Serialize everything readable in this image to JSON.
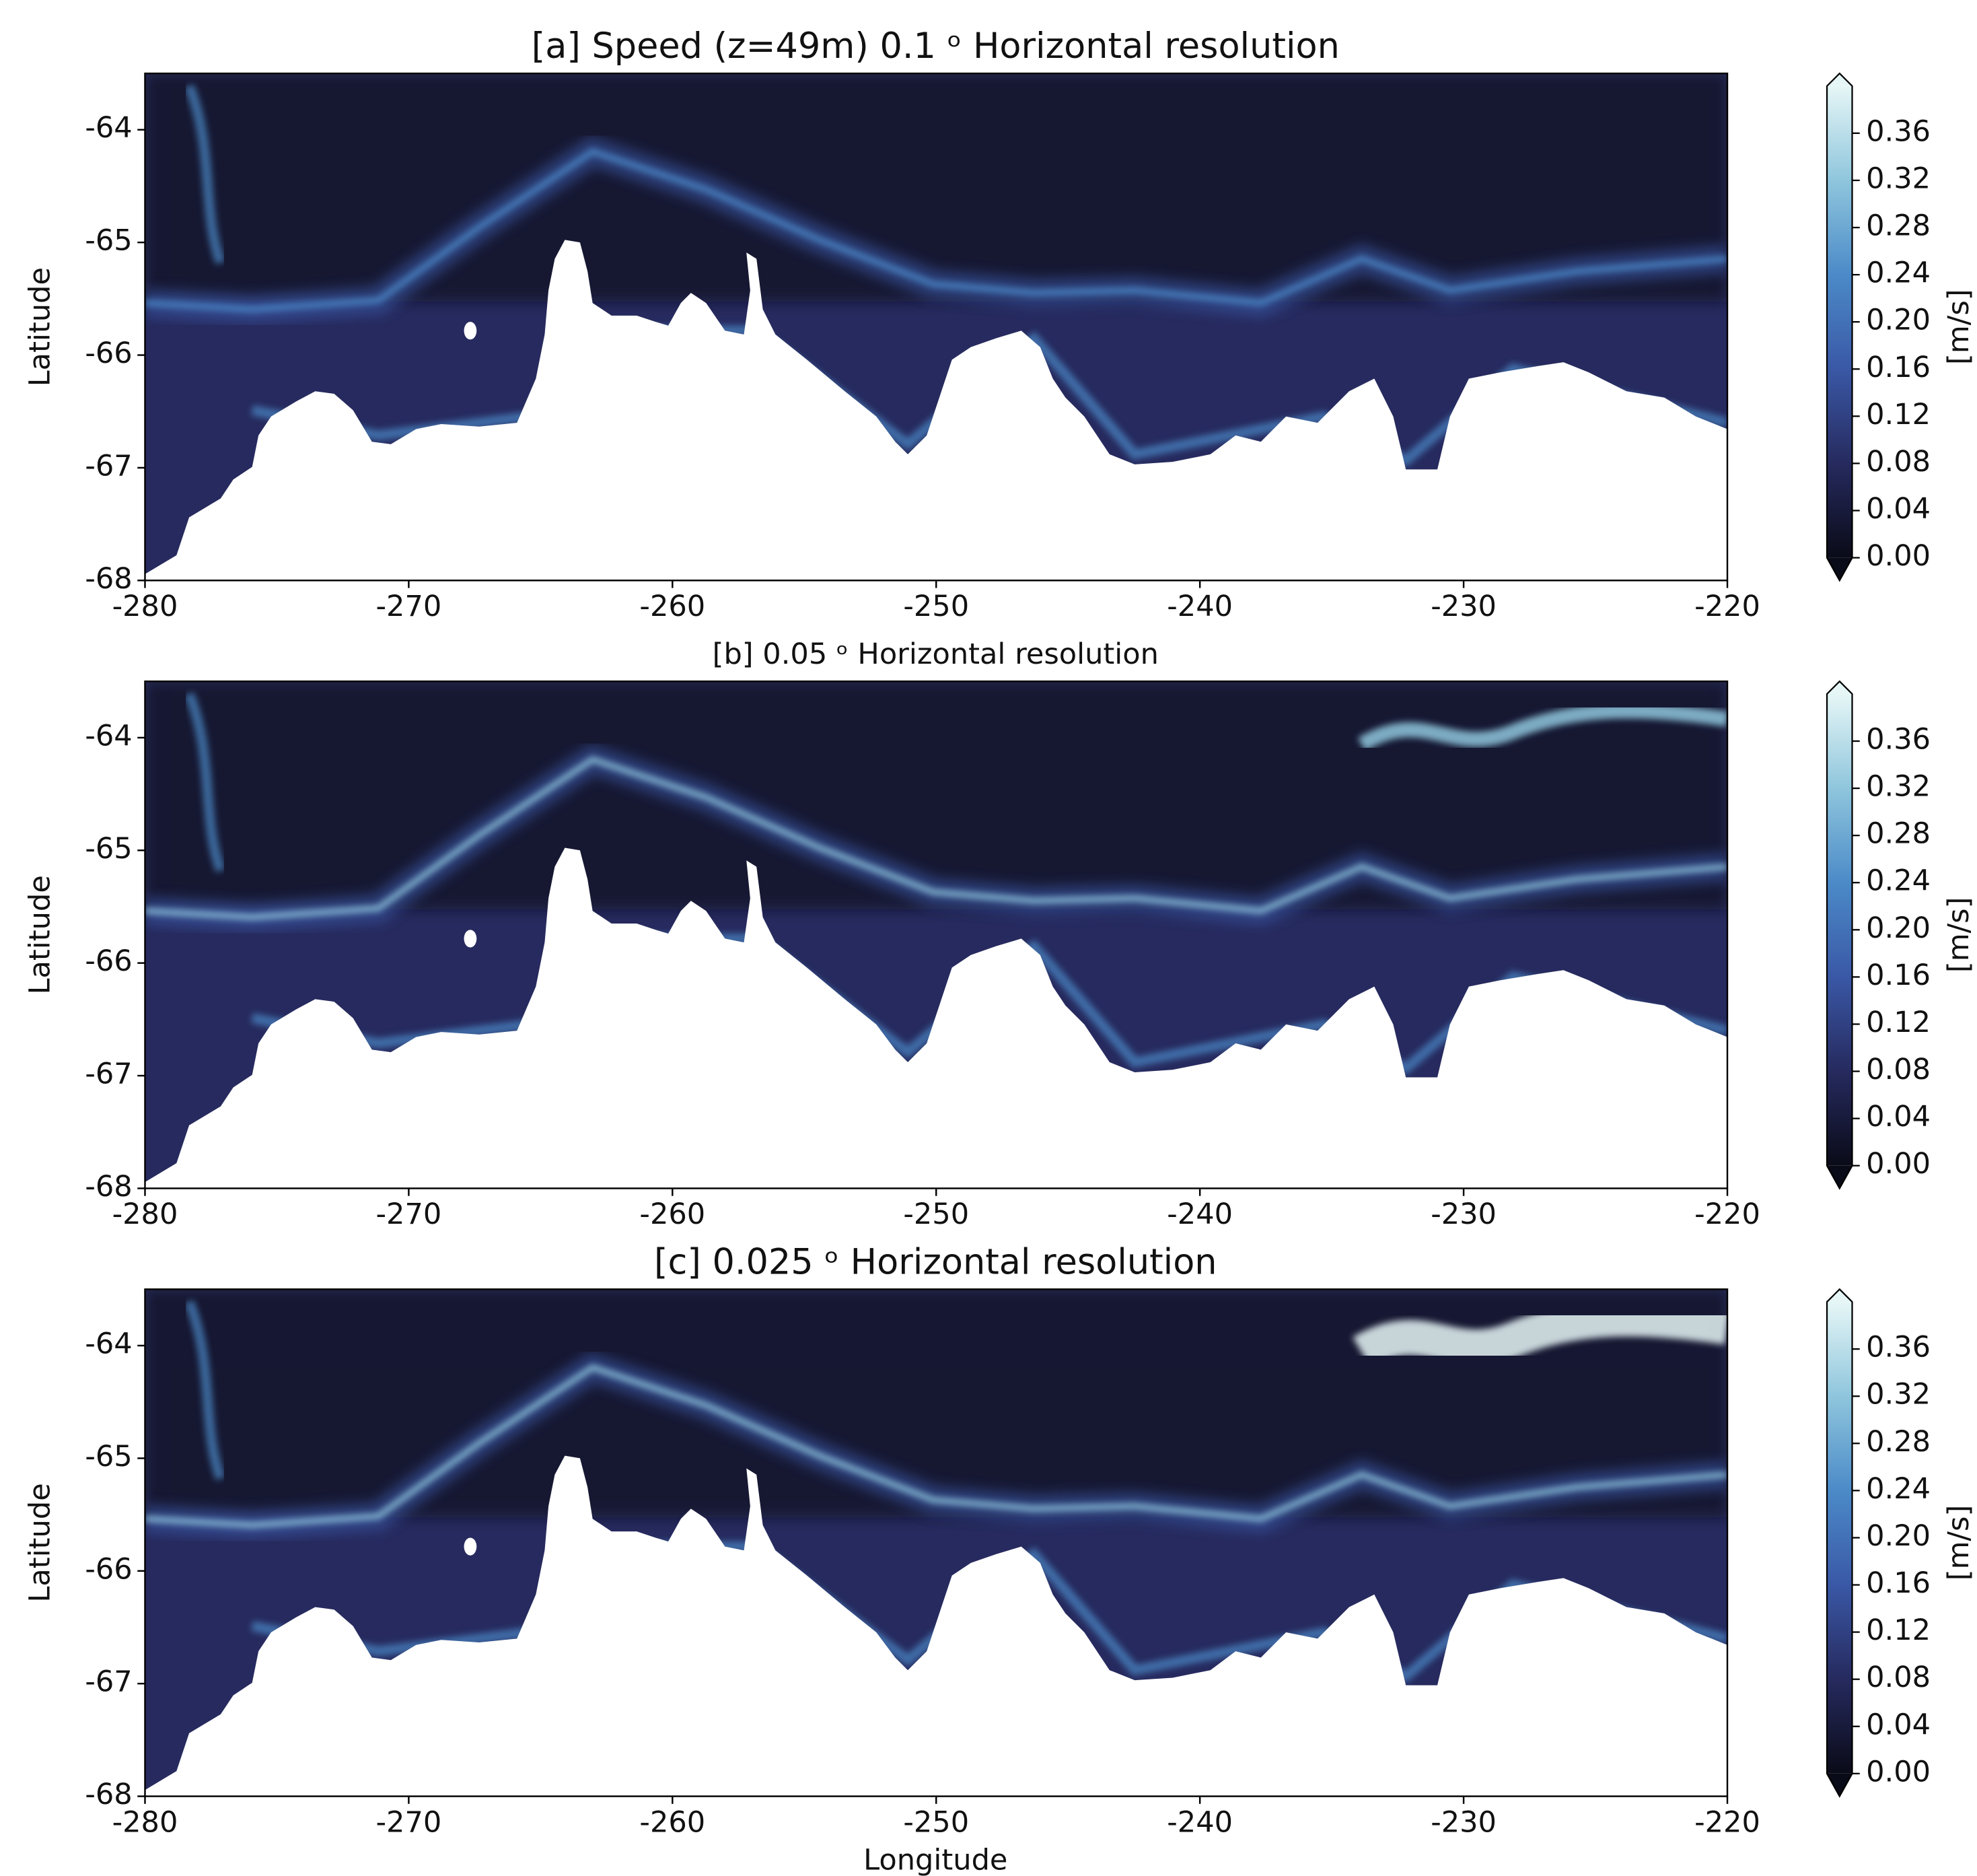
{
  "chart_data": [
    {
      "type": "heatmap",
      "title": "[a] Speed (z=49m) 0.1 ᵒ Horizontal resolution",
      "ylabel": "Latitude",
      "xlim": [
        -280,
        -220
      ],
      "xticks": [
        -280,
        -270,
        -260,
        -250,
        -240,
        -230,
        -220
      ],
      "ylim": [
        -68,
        -63.5
      ],
      "yticks": [
        -68,
        -67,
        -66,
        -65,
        -64
      ],
      "colorbar": {
        "label": "[m/s]",
        "lim": [
          0,
          0.4
        ],
        "colors": [
          "#0a0b18",
          "#262a5e",
          "#3a58a6",
          "#4b8ac8",
          "#8fc6dd",
          "#e6f6f6"
        ],
        "ticks": [
          {
            "value": 0,
            "label": "0.00"
          },
          0.04,
          0.08,
          0.12,
          0.16,
          {
            "value": 0.2,
            "label": "0.20"
          },
          0.24,
          0.28,
          0.32,
          0.36
        ]
      }
    },
    {
      "type": "heatmap",
      "title": "[b] 0.05 ᵒ Horizontal resolution",
      "ylabel": "Latitude",
      "xlim": [
        -280,
        -220
      ],
      "xticks": [
        -280,
        -270,
        -260,
        -250,
        -240,
        -230,
        -220
      ],
      "ylim": [
        -68,
        -63.5
      ],
      "yticks": [
        -68,
        -67,
        -66,
        -65,
        -64
      ],
      "colorbar": {
        "label": "[m/s]",
        "lim": [
          0,
          0.4
        ],
        "colors": [
          "#0a0b18",
          "#262a5e",
          "#3a58a6",
          "#4b8ac8",
          "#8fc6dd",
          "#e6f6f6"
        ],
        "ticks": [
          {
            "value": 0,
            "label": "0.00"
          },
          0.04,
          0.08,
          0.12,
          0.16,
          {
            "value": 0.2,
            "label": "0.20"
          },
          0.24,
          0.28,
          0.32,
          0.36
        ]
      }
    },
    {
      "type": "heatmap",
      "title": "[c] 0.025 ᵒ Horizontal resolution",
      "xlabel": "Longitude",
      "ylabel": "Latitude",
      "xlim": [
        -280,
        -220
      ],
      "xticks": [
        -280,
        -270,
        -260,
        -250,
        -240,
        -230,
        -220
      ],
      "ylim": [
        -68,
        -63.5
      ],
      "yticks": [
        -68,
        -67,
        -66,
        -65,
        -64
      ],
      "colorbar": {
        "label": "[m/s]",
        "lim": [
          0,
          0.4
        ],
        "colors": [
          "#0a0b18",
          "#262a5e",
          "#3a58a6",
          "#4b8ac8",
          "#8fc6dd",
          "#e6f6f6"
        ],
        "ticks": [
          {
            "value": 0,
            "label": "0.00"
          },
          0.04,
          0.08,
          0.12,
          0.16,
          {
            "value": 0.2,
            "label": "0.20"
          },
          0.24,
          0.28,
          0.32,
          0.36
        ]
      }
    }
  ]
}
